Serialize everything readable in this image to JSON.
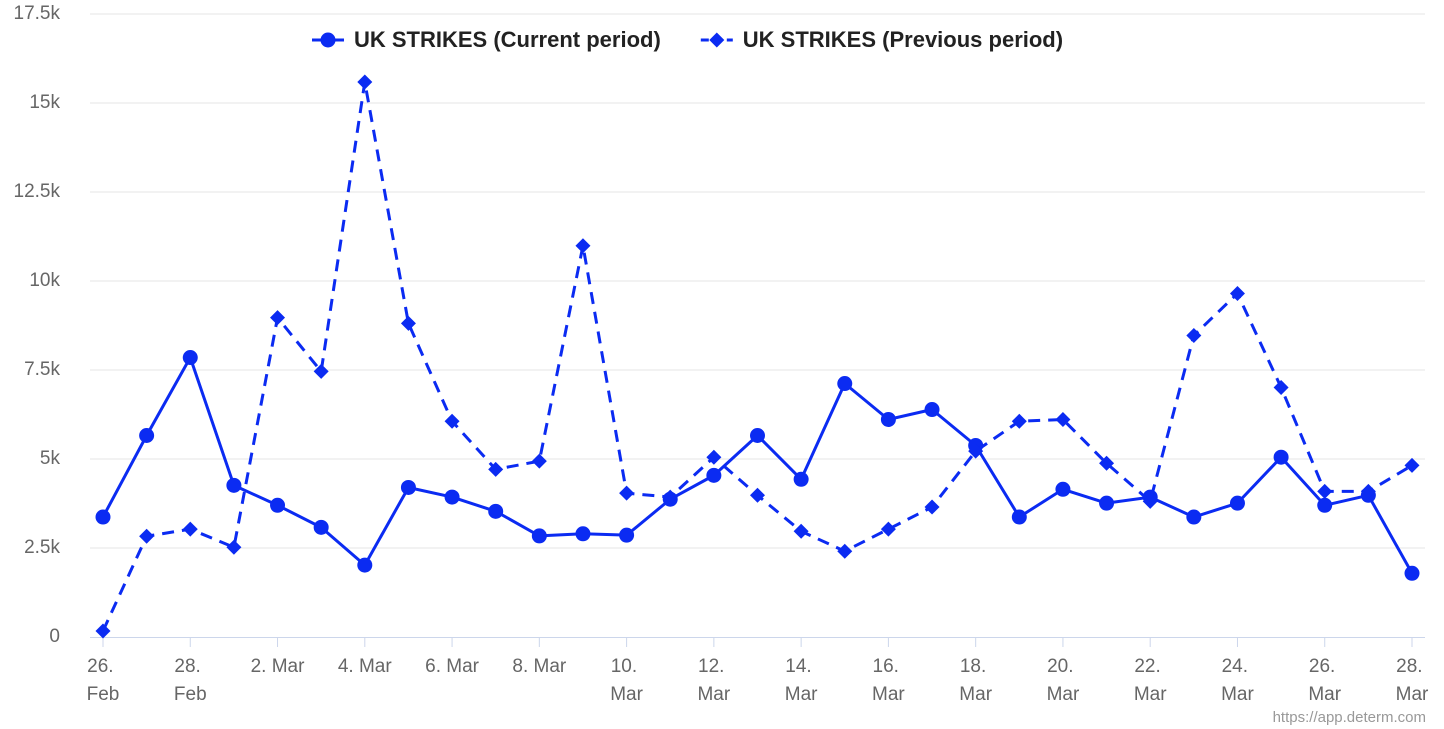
{
  "chart_data": {
    "type": "line",
    "categories": [
      "26. Feb",
      null,
      "28. Feb",
      null,
      "2. Mar",
      null,
      "4. Mar",
      null,
      "6. Mar",
      null,
      "8. Mar",
      null,
      "10. Mar",
      null,
      "12. Mar",
      null,
      "14. Mar",
      null,
      "16. Mar",
      null,
      "18. Mar",
      null,
      "20. Mar",
      null,
      "22. Mar",
      null,
      "24. Mar",
      null,
      "26. Mar",
      null,
      "28. Mar"
    ],
    "series": [
      {
        "name": "UK STRIKES (Current period)",
        "color": "#0b2bf2",
        "marker": "circle",
        "dashed": false,
        "values": [
          3370,
          5660,
          7850,
          4260,
          3700,
          3080,
          2020,
          4200,
          3930,
          3530,
          2840,
          2900,
          2860,
          3870,
          4540,
          5660,
          4430,
          7120,
          6110,
          6390,
          5380,
          3370,
          4150,
          3760,
          3930,
          3370,
          3760,
          5050,
          3700,
          3980,
          1790
        ]
      },
      {
        "name": "UK STRIKES (Previous period)",
        "color": "#0b2bf2",
        "marker": "diamond",
        "dashed": true,
        "values": [
          170,
          2830,
          3030,
          2520,
          8970,
          7460,
          15590,
          8810,
          6060,
          4710,
          4940,
          10990,
          4040,
          3930,
          5050,
          3980,
          2970,
          2410,
          3030,
          3650,
          5220,
          6060,
          6110,
          4880,
          3810,
          8470,
          9650,
          7010,
          4090,
          4090,
          4820
        ]
      }
    ],
    "ylim": [
      0,
      17500
    ],
    "yticks": [
      0,
      {
        "value": 2500,
        "label": "2.5k"
      },
      {
        "value": 5000,
        "label": "5k"
      },
      {
        "value": 7500,
        "label": "7.5k"
      },
      {
        "value": 10000,
        "label": "10k"
      },
      {
        "value": 12500,
        "label": "12.5k"
      },
      {
        "value": 15000,
        "label": "15k"
      },
      {
        "value": 17500,
        "label": "17.5k"
      }
    ],
    "grid": true,
    "legend": "top",
    "credit": "https://app.determ.com"
  }
}
